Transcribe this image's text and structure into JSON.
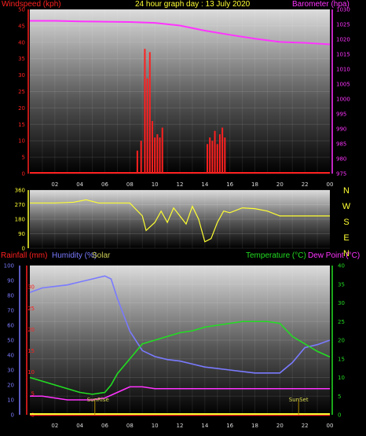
{
  "header": {
    "windspeed_label": "Windspeed (kph)",
    "title": "24 hour graph day : 13 July 2020",
    "barometer_label": "Barometer (hpa)",
    "rainfall_label": "Rainfall (mm)",
    "humidity_label": "Humidity (%)",
    "solar_label": "Solar",
    "temperature_label": "Temperature (°C)",
    "dewpoint_label": "Dew Point (°C)"
  },
  "colors": {
    "wind": "#ff2020",
    "gust": "#cc0000",
    "barometer": "#ff33ff",
    "winddir": "#ffff33",
    "rainfall": "#ff2020",
    "humidity": "#7a7aff",
    "solar": "#ffff33",
    "temperature": "#22dd22",
    "dewpoint": "#ff33ff",
    "time_axis": "#ffff33",
    "axis_text": "#dddddd"
  },
  "chart_data": [
    {
      "type": "bar",
      "title": "24 hour graph day : 13 July 2020",
      "x_ticks": [
        "02",
        "04",
        "06",
        "08",
        "10",
        "12",
        "14",
        "16",
        "18",
        "20",
        "22",
        "00"
      ],
      "ylabel": "Windspeed (kph)",
      "ylim": [
        0,
        50
      ],
      "y_ticks": [
        0,
        5,
        10,
        15,
        20,
        25,
        30,
        35,
        40,
        45,
        50
      ],
      "series": [
        {
          "name": "Windspeed (kph)",
          "x_hours": [
            8.6,
            8.9,
            9.2,
            9.4,
            9.6,
            9.8,
            10.0,
            10.2,
            10.4,
            10.6,
            14.2,
            14.4,
            14.6,
            14.8,
            15.0,
            15.2,
            15.4,
            15.6
          ],
          "values": [
            7,
            10,
            38,
            29,
            37,
            16,
            11,
            12,
            11,
            14,
            9,
            11,
            10,
            13,
            9,
            12,
            14,
            11
          ]
        }
      ],
      "secondary": {
        "name": "Barometer (hpa)",
        "ylim": [
          975,
          1030
        ],
        "y_ticks": [
          975,
          980,
          985,
          990,
          995,
          1000,
          1005,
          1010,
          1015,
          1020,
          1025,
          1030
        ],
        "x_hours": [
          0,
          2,
          4,
          6,
          8,
          10,
          12,
          14,
          16,
          18,
          20,
          22,
          24
        ],
        "values": [
          1026.2,
          1026.2,
          1026.0,
          1025.9,
          1025.8,
          1025.5,
          1024.6,
          1022.9,
          1021.5,
          1020.2,
          1019.1,
          1018.8,
          1018.3
        ]
      }
    },
    {
      "type": "line",
      "ylabel": "Wind direction",
      "ylim": [
        0,
        360
      ],
      "y_ticks": [
        0,
        90,
        180,
        270,
        360
      ],
      "compass": [
        "N",
        "W",
        "S",
        "E",
        "N"
      ],
      "series": [
        {
          "name": "Wind direction",
          "x_hours": [
            0,
            2,
            3.5,
            4.5,
            5.5,
            6.5,
            8.0,
            9.0,
            9.3,
            10,
            10.5,
            11,
            11.5,
            12,
            12.5,
            13,
            13.5,
            14,
            14.5,
            15,
            15.5,
            16,
            17,
            18,
            19,
            20,
            22,
            24
          ],
          "values": [
            280,
            280,
            285,
            300,
            280,
            280,
            280,
            200,
            110,
            160,
            230,
            160,
            250,
            200,
            150,
            260,
            180,
            40,
            60,
            160,
            230,
            220,
            250,
            245,
            230,
            200,
            200,
            200
          ]
        }
      ]
    },
    {
      "type": "line",
      "ylabel": "Rainfall (mm) / Humidity (%) / Temperature (°C)",
      "ylim": [
        0,
        40
      ],
      "y_ticks": [
        0,
        5,
        10,
        15,
        20,
        25,
        30,
        35,
        40
      ],
      "humidity_ticks": [
        0,
        10,
        20,
        30,
        40,
        50,
        60,
        70,
        80,
        90,
        100
      ],
      "rainfall_ticks": [
        0,
        5,
        10,
        15,
        20,
        25,
        30
      ],
      "annotations": [
        "SunRise",
        "SunSet"
      ],
      "series": [
        {
          "name": "Humidity (%)",
          "axis": "humidity",
          "x_hours": [
            0,
            1,
            2,
            3,
            4,
            5,
            6,
            6.5,
            7,
            8,
            9,
            10,
            11,
            12,
            13,
            14,
            15,
            16,
            17,
            18,
            19,
            20,
            21,
            22,
            23,
            24
          ],
          "values": [
            82,
            85,
            86,
            87,
            89,
            91,
            93,
            91,
            78,
            56,
            43,
            39,
            37,
            36,
            34,
            32,
            31,
            30,
            29,
            28,
            28,
            28,
            35,
            45,
            47,
            50
          ]
        },
        {
          "name": "Temperature (°C)",
          "axis": "temperature",
          "x_hours": [
            0,
            1,
            2,
            3,
            4,
            5,
            6,
            6.5,
            7,
            8,
            9,
            10,
            11,
            12,
            13,
            14,
            15,
            16,
            17,
            18,
            19,
            20,
            21,
            22,
            23,
            24
          ],
          "values": [
            10,
            9,
            8,
            7,
            6,
            5.5,
            6,
            8,
            11,
            15,
            19,
            20,
            21,
            22,
            22.5,
            23.5,
            24,
            24.5,
            25,
            25,
            25,
            24.5,
            21,
            19,
            17,
            15.5
          ]
        },
        {
          "name": "Dew Point (°C)",
          "axis": "temperature",
          "x_hours": [
            0,
            1,
            2,
            3,
            4,
            5,
            6,
            7,
            8,
            9,
            10,
            11,
            12,
            13,
            14,
            15,
            16,
            17,
            18,
            19,
            20,
            21,
            22,
            23,
            24
          ],
          "values": [
            5,
            5,
            4.5,
            4,
            4,
            4,
            4.5,
            6,
            7.5,
            7.5,
            7,
            7,
            7,
            7,
            7,
            7,
            7,
            7,
            7,
            7,
            7,
            7,
            7,
            7,
            7
          ]
        },
        {
          "name": "Rainfall (mm)",
          "axis": "rainfall",
          "x_hours": [
            0,
            24
          ],
          "values": [
            0,
            0
          ]
        }
      ]
    }
  ]
}
